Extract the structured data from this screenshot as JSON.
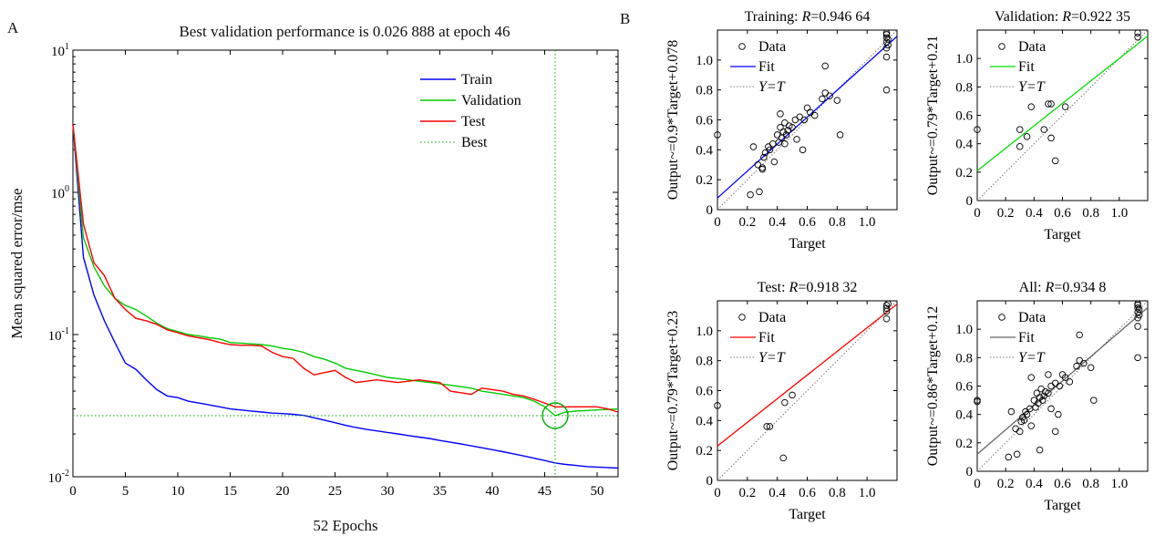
{
  "figure": {
    "panel_a_label": "A",
    "panel_b_label": "B"
  },
  "chart_data": [
    {
      "type": "line",
      "title": "Best validation performance is 0.026 888 at epoch 46",
      "xlabel": "52 Epochs",
      "ylabel": "Mean squared error/mse",
      "yscale": "log",
      "xlim": [
        0,
        52
      ],
      "ylim": [
        0.01,
        10
      ],
      "x_ticks": [
        "0",
        "5",
        "10",
        "15",
        "20",
        "25",
        "30",
        "35",
        "40",
        "45",
        "50"
      ],
      "y_ticks": [
        {
          "base": "10",
          "exp": "-2",
          "value": 0.01
        },
        {
          "base": "10",
          "exp": "-1",
          "value": 0.1
        },
        {
          "base": "10",
          "exp": "0",
          "value": 1
        },
        {
          "base": "10",
          "exp": "1",
          "value": 10
        }
      ],
      "legend_position": "top-right",
      "series": [
        {
          "name": "Train",
          "color": "#0000ff",
          "style": "solid",
          "values": [
            3.0,
            0.35,
            0.19,
            0.125,
            0.088,
            0.063,
            0.057,
            0.048,
            0.041,
            0.037,
            0.036,
            0.034,
            0.033,
            0.032,
            0.031,
            0.03,
            0.0295,
            0.029,
            0.0285,
            0.028,
            0.0278,
            0.0275,
            0.027,
            0.026,
            0.025,
            0.024,
            0.023,
            0.0222,
            0.0215,
            0.021,
            0.0205,
            0.02,
            0.0195,
            0.019,
            0.0186,
            0.018,
            0.0175,
            0.017,
            0.0165,
            0.016,
            0.0155,
            0.015,
            0.0145,
            0.014,
            0.0135,
            0.013,
            0.0125,
            0.0122,
            0.012,
            0.0118,
            0.0117,
            0.0116,
            0.0115
          ]
        },
        {
          "name": "Validation",
          "color": "#00cc00",
          "style": "solid",
          "values": [
            3.0,
            0.48,
            0.3,
            0.22,
            0.18,
            0.16,
            0.15,
            0.135,
            0.12,
            0.11,
            0.105,
            0.1,
            0.098,
            0.095,
            0.093,
            0.088,
            0.087,
            0.086,
            0.085,
            0.083,
            0.08,
            0.078,
            0.075,
            0.07,
            0.067,
            0.063,
            0.058,
            0.056,
            0.054,
            0.052,
            0.05,
            0.049,
            0.048,
            0.047,
            0.046,
            0.045,
            0.044,
            0.043,
            0.042,
            0.04,
            0.039,
            0.038,
            0.037,
            0.036,
            0.034,
            0.031,
            0.0269,
            0.0285,
            0.029,
            0.0292,
            0.0295,
            0.0297,
            0.03
          ]
        },
        {
          "name": "Test",
          "color": "#ff0000",
          "style": "solid",
          "values": [
            3.0,
            0.6,
            0.32,
            0.26,
            0.18,
            0.15,
            0.13,
            0.125,
            0.118,
            0.108,
            0.103,
            0.098,
            0.095,
            0.092,
            0.088,
            0.085,
            0.084,
            0.084,
            0.083,
            0.075,
            0.07,
            0.068,
            0.058,
            0.052,
            0.054,
            0.056,
            0.05,
            0.046,
            0.047,
            0.048,
            0.047,
            0.046,
            0.047,
            0.048,
            0.047,
            0.046,
            0.04,
            0.039,
            0.038,
            0.042,
            0.041,
            0.04,
            0.038,
            0.037,
            0.035,
            0.033,
            0.031,
            0.031,
            0.031,
            0.031,
            0.031,
            0.03,
            0.0285
          ]
        },
        {
          "name": "Best",
          "color": "#00aa00",
          "style": "dotted",
          "x": 46,
          "y": 0.026888
        }
      ]
    },
    {
      "type": "scatter",
      "title_prefix": "Training: ",
      "title_r": "R",
      "title_value": "=0.946 64",
      "ylabel": "Output~=0.9*Target+0.078",
      "xlabel": "Target",
      "fit": {
        "slope": 0.9,
        "intercept": 0.078,
        "color": "#0000ff"
      },
      "legend": [
        "Data",
        "Fit",
        "Y=T"
      ],
      "points": [
        [
          0,
          0.5
        ],
        [
          0.22,
          0.1
        ],
        [
          0.28,
          0.12
        ],
        [
          0.27,
          0.3
        ],
        [
          0.3,
          0.28
        ],
        [
          0.31,
          0.35
        ],
        [
          0.32,
          0.38
        ],
        [
          0.34,
          0.42
        ],
        [
          0.35,
          0.4
        ],
        [
          0.37,
          0.44
        ],
        [
          0.38,
          0.32
        ],
        [
          0.4,
          0.5
        ],
        [
          0.41,
          0.45
        ],
        [
          0.42,
          0.55
        ],
        [
          0.43,
          0.48
        ],
        [
          0.44,
          0.52
        ],
        [
          0.45,
          0.58
        ],
        [
          0.46,
          0.5
        ],
        [
          0.47,
          0.53
        ],
        [
          0.48,
          0.56
        ],
        [
          0.5,
          0.55
        ],
        [
          0.52,
          0.6
        ],
        [
          0.53,
          0.47
        ],
        [
          0.55,
          0.62
        ],
        [
          0.57,
          0.4
        ],
        [
          0.58,
          0.6
        ],
        [
          0.6,
          0.68
        ],
        [
          0.62,
          0.65
        ],
        [
          0.65,
          0.63
        ],
        [
          0.7,
          0.74
        ],
        [
          0.72,
          0.78
        ],
        [
          0.75,
          0.76
        ],
        [
          0.8,
          0.73
        ],
        [
          0.82,
          0.5
        ],
        [
          0.72,
          0.96
        ],
        [
          0.24,
          0.42
        ],
        [
          0.3,
          0.27
        ],
        [
          0.42,
          0.64
        ],
        [
          0.45,
          0.44
        ],
        [
          1.13,
          0.8
        ],
        [
          1.13,
          1.02
        ],
        [
          1.13,
          1.08
        ],
        [
          1.13,
          1.12
        ],
        [
          1.13,
          1.15
        ],
        [
          1.13,
          1.17
        ],
        [
          1.13,
          1.18
        ],
        [
          1.14,
          1.14
        ],
        [
          1.14,
          1.1
        ]
      ]
    },
    {
      "type": "scatter",
      "title_prefix": "Validation: ",
      "title_r": "R",
      "title_value": "=0.922 35",
      "ylabel": "Output~=0.79*Target+0.21",
      "xlabel": "Target",
      "fit": {
        "slope": 0.79,
        "intercept": 0.21,
        "color": "#00dd00"
      },
      "legend": [
        "Data",
        "Fit",
        "Y=T"
      ],
      "points": [
        [
          0,
          0.5
        ],
        [
          0.3,
          0.38
        ],
        [
          0.3,
          0.5
        ],
        [
          0.35,
          0.45
        ],
        [
          0.38,
          0.66
        ],
        [
          0.47,
          0.5
        ],
        [
          0.5,
          0.68
        ],
        [
          0.52,
          0.68
        ],
        [
          0.52,
          0.44
        ],
        [
          0.55,
          0.28
        ],
        [
          0.62,
          0.66
        ],
        [
          1.13,
          1.15
        ],
        [
          1.13,
          1.18
        ]
      ]
    },
    {
      "type": "scatter",
      "title_prefix": "Test: ",
      "title_r": "R",
      "title_value": "=0.918 32",
      "ylabel": "Output~=0.79*Target+0.23",
      "xlabel": "Target",
      "fit": {
        "slope": 0.79,
        "intercept": 0.23,
        "color": "#ff0000"
      },
      "legend": [
        "Data",
        "Fit",
        "Y=T"
      ],
      "points": [
        [
          0,
          0.5
        ],
        [
          0.33,
          0.36
        ],
        [
          0.35,
          0.36
        ],
        [
          0.44,
          0.15
        ],
        [
          0.45,
          0.52
        ],
        [
          0.5,
          0.57
        ],
        [
          1.13,
          1.08
        ],
        [
          1.13,
          1.13
        ],
        [
          1.13,
          1.15
        ],
        [
          1.13,
          1.17
        ],
        [
          1.14,
          1.18
        ]
      ]
    },
    {
      "type": "scatter",
      "title_prefix": "All: ",
      "title_r": "R",
      "title_value": "=0.934 8",
      "ylabel": "Output~=0.86*Target+0.12",
      "xlabel": "Target",
      "fit": {
        "slope": 0.86,
        "intercept": 0.12,
        "color": "#666666"
      },
      "legend": [
        "Data",
        "Fit",
        "Y=T"
      ],
      "points": [
        [
          0,
          0.5
        ],
        [
          0,
          0.49
        ],
        [
          0.22,
          0.1
        ],
        [
          0.24,
          0.42
        ],
        [
          0.27,
          0.3
        ],
        [
          0.28,
          0.12
        ],
        [
          0.3,
          0.28
        ],
        [
          0.31,
          0.35
        ],
        [
          0.32,
          0.38
        ],
        [
          0.33,
          0.36
        ],
        [
          0.34,
          0.42
        ],
        [
          0.35,
          0.4
        ],
        [
          0.37,
          0.44
        ],
        [
          0.38,
          0.32
        ],
        [
          0.38,
          0.66
        ],
        [
          0.4,
          0.5
        ],
        [
          0.41,
          0.45
        ],
        [
          0.42,
          0.55
        ],
        [
          0.43,
          0.48
        ],
        [
          0.44,
          0.15
        ],
        [
          0.44,
          0.52
        ],
        [
          0.45,
          0.58
        ],
        [
          0.46,
          0.5
        ],
        [
          0.47,
          0.53
        ],
        [
          0.48,
          0.56
        ],
        [
          0.5,
          0.55
        ],
        [
          0.5,
          0.68
        ],
        [
          0.52,
          0.6
        ],
        [
          0.52,
          0.44
        ],
        [
          0.55,
          0.62
        ],
        [
          0.55,
          0.28
        ],
        [
          0.57,
          0.4
        ],
        [
          0.58,
          0.6
        ],
        [
          0.6,
          0.68
        ],
        [
          0.62,
          0.66
        ],
        [
          0.65,
          0.63
        ],
        [
          0.7,
          0.74
        ],
        [
          0.72,
          0.78
        ],
        [
          0.72,
          0.96
        ],
        [
          0.75,
          0.76
        ],
        [
          0.8,
          0.73
        ],
        [
          0.82,
          0.5
        ],
        [
          1.13,
          0.8
        ],
        [
          1.13,
          1.02
        ],
        [
          1.13,
          1.08
        ],
        [
          1.13,
          1.12
        ],
        [
          1.13,
          1.15
        ],
        [
          1.13,
          1.17
        ],
        [
          1.13,
          1.18
        ],
        [
          1.14,
          1.14
        ],
        [
          1.14,
          1.1
        ]
      ]
    }
  ],
  "scatter_axes": {
    "xlim": [
      0,
      1.2
    ],
    "ylim": [
      0,
      1.2
    ],
    "x_ticks": [
      "0",
      "0.2",
      "0.4",
      "0.6",
      "0.8",
      "1.0"
    ],
    "y_ticks": [
      "0",
      "0.2",
      "0.4",
      "0.6",
      "0.8",
      "1.0"
    ]
  }
}
